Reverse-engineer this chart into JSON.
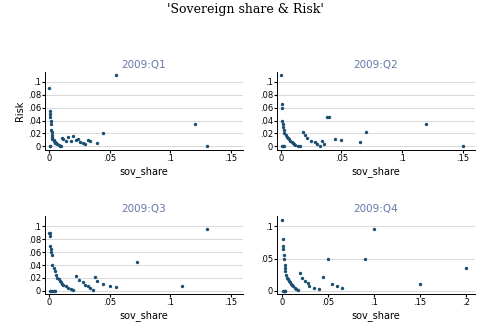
{
  "title": "'Sovereign share & Risk'",
  "dot_color": "#1B4F72",
  "background_color": "#ffffff",
  "title_color": "#6677AA",
  "subplots": [
    {
      "label": "2009:Q1",
      "xlabel": "sov_share",
      "ylabel": "Risk",
      "xlim": [
        -0.003,
        0.16
      ],
      "ylim": [
        -0.005,
        0.115
      ],
      "xticks": [
        0,
        0.05,
        0.1,
        0.15
      ],
      "yticks": [
        0,
        0.02,
        0.04,
        0.06,
        0.08,
        0.1
      ],
      "x": [
        0.0005,
        0.001,
        0.001,
        0.001,
        0.002,
        0.002,
        0.002,
        0.003,
        0.003,
        0.003,
        0.003,
        0.004,
        0.004,
        0.005,
        0.005,
        0.006,
        0.007,
        0.008,
        0.009,
        0.01,
        0.011,
        0.012,
        0.014,
        0.016,
        0.018,
        0.02,
        0.022,
        0.024,
        0.026,
        0.028,
        0.03,
        0.032,
        0.034,
        0.04,
        0.045,
        0.055,
        0.12,
        0.13,
        0.001,
        0.001
      ],
      "y": [
        0.09,
        0.055,
        0.05,
        0.045,
        0.04,
        0.035,
        0.025,
        0.022,
        0.018,
        0.015,
        0.012,
        0.01,
        0.008,
        0.007,
        0.006,
        0.005,
        0.003,
        0.002,
        0.001,
        0.0,
        0.013,
        0.011,
        0.009,
        0.015,
        0.008,
        0.016,
        0.01,
        0.012,
        0.007,
        0.005,
        0.003,
        0.01,
        0.008,
        0.005,
        0.021,
        0.11,
        0.035,
        0.001,
        0.0,
        0.0
      ]
    },
    {
      "label": "2009:Q2",
      "xlabel": "sov_share",
      "ylabel": "",
      "xlim": [
        -0.003,
        0.16
      ],
      "ylim": [
        -0.005,
        0.115
      ],
      "xticks": [
        0,
        0.05,
        0.1,
        0.15
      ],
      "yticks": [
        0,
        0.02,
        0.04,
        0.06,
        0.08,
        0.1
      ],
      "x": [
        0.0005,
        0.001,
        0.001,
        0.001,
        0.002,
        0.002,
        0.003,
        0.003,
        0.004,
        0.005,
        0.006,
        0.007,
        0.008,
        0.009,
        0.01,
        0.011,
        0.012,
        0.014,
        0.016,
        0.018,
        0.02,
        0.022,
        0.025,
        0.028,
        0.03,
        0.032,
        0.034,
        0.036,
        0.038,
        0.04,
        0.045,
        0.05,
        0.065,
        0.07,
        0.12,
        0.15,
        0.001,
        0.002,
        0.003
      ],
      "y": [
        0.11,
        0.065,
        0.06,
        0.04,
        0.035,
        0.03,
        0.025,
        0.02,
        0.018,
        0.015,
        0.013,
        0.011,
        0.009,
        0.007,
        0.005,
        0.003,
        0.002,
        0.001,
        0.0,
        0.023,
        0.017,
        0.013,
        0.009,
        0.007,
        0.004,
        0.001,
        0.008,
        0.003,
        0.045,
        0.045,
        0.011,
        0.01,
        0.007,
        0.022,
        0.035,
        0.001,
        0.0,
        0.0,
        0.0
      ]
    },
    {
      "label": "2009:Q3",
      "xlabel": "sov_share",
      "ylabel": "",
      "xlim": [
        -0.003,
        0.16
      ],
      "ylim": [
        -0.005,
        0.115
      ],
      "xticks": [
        0,
        0.05,
        0.1,
        0.15
      ],
      "yticks": [
        0,
        0.02,
        0.04,
        0.06,
        0.08,
        0.1
      ],
      "x": [
        0.0005,
        0.001,
        0.001,
        0.001,
        0.002,
        0.002,
        0.003,
        0.003,
        0.004,
        0.005,
        0.006,
        0.007,
        0.008,
        0.009,
        0.01,
        0.011,
        0.012,
        0.014,
        0.016,
        0.018,
        0.02,
        0.022,
        0.025,
        0.028,
        0.03,
        0.032,
        0.034,
        0.036,
        0.038,
        0.04,
        0.045,
        0.05,
        0.055,
        0.073,
        0.11,
        0.13,
        0.001,
        0.002,
        0.003,
        0.004,
        0.005
      ],
      "y": [
        0.09,
        0.09,
        0.085,
        0.07,
        0.065,
        0.06,
        0.055,
        0.04,
        0.035,
        0.03,
        0.025,
        0.02,
        0.018,
        0.015,
        0.013,
        0.011,
        0.009,
        0.007,
        0.005,
        0.003,
        0.002,
        0.023,
        0.017,
        0.013,
        0.009,
        0.007,
        0.004,
        0.001,
        0.022,
        0.015,
        0.01,
        0.008,
        0.006,
        0.045,
        0.008,
        0.095,
        0.0,
        0.0,
        0.0,
        0.0,
        0.0
      ]
    },
    {
      "label": "2009:Q4",
      "xlabel": "sov_share",
      "ylabel": "",
      "xlim": [
        -0.005,
        0.21
      ],
      "ylim": [
        -0.005,
        0.115
      ],
      "xticks": [
        0,
        0.05,
        0.1,
        0.15,
        0.2
      ],
      "yticks": [
        0,
        0.05,
        0.1
      ],
      "x": [
        0.0005,
        0.001,
        0.001,
        0.001,
        0.002,
        0.002,
        0.003,
        0.003,
        0.004,
        0.005,
        0.006,
        0.007,
        0.008,
        0.009,
        0.01,
        0.011,
        0.012,
        0.014,
        0.016,
        0.018,
        0.02,
        0.022,
        0.025,
        0.028,
        0.03,
        0.035,
        0.04,
        0.045,
        0.05,
        0.055,
        0.06,
        0.065,
        0.09,
        0.1,
        0.15,
        0.2,
        0.001,
        0.002,
        0.003,
        0.004
      ],
      "y": [
        0.11,
        0.08,
        0.07,
        0.065,
        0.055,
        0.05,
        0.04,
        0.035,
        0.03,
        0.025,
        0.02,
        0.018,
        0.015,
        0.013,
        0.011,
        0.009,
        0.007,
        0.005,
        0.003,
        0.001,
        0.028,
        0.02,
        0.015,
        0.012,
        0.008,
        0.005,
        0.003,
        0.022,
        0.05,
        0.01,
        0.008,
        0.004,
        0.05,
        0.095,
        0.01,
        0.035,
        0.0,
        0.0,
        0.0,
        0.0
      ]
    }
  ]
}
